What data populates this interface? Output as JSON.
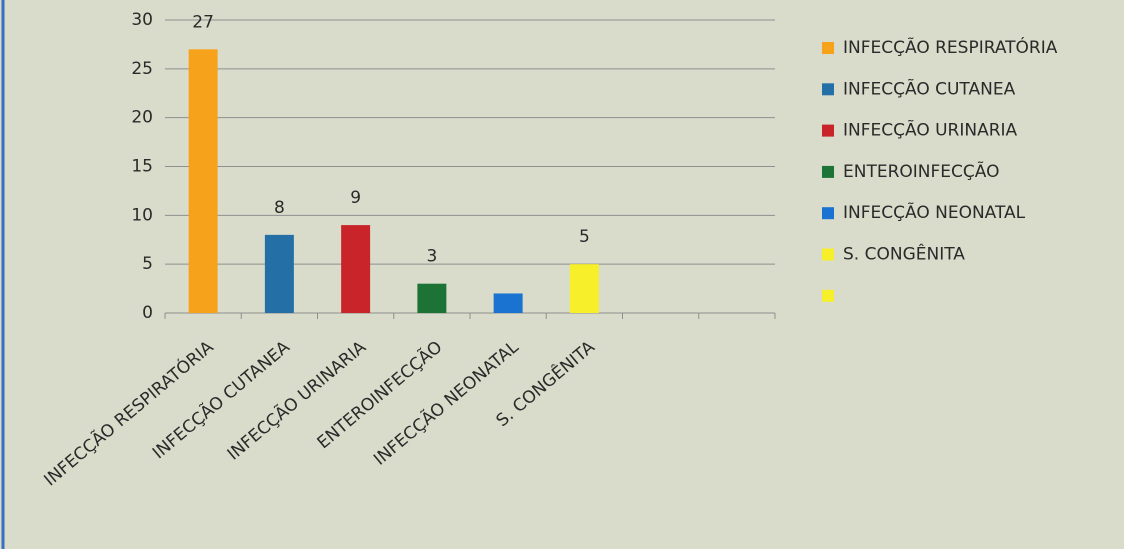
{
  "chart_data": {
    "type": "bar",
    "categories": [
      "INFECÇÃO RESPIRATÓRIA",
      "INFECÇÃO CUTANEA",
      "INFECÇÃO URINARIA",
      "ENTEROINFECÇÃO",
      "INFECÇÃO NEONATAL",
      "S. CONGÊNITA",
      null,
      null
    ],
    "values": [
      27,
      8,
      9,
      3,
      2,
      5,
      null,
      null
    ],
    "value_labels": [
      "27",
      "8",
      "9",
      "3",
      null,
      "5",
      null,
      null
    ],
    "colors": [
      "#f7a21b",
      "#2470a6",
      "#c8242a",
      "#1c7335",
      "#1a73d0",
      "#f7ef2a",
      null,
      null
    ],
    "legend": [
      {
        "name": "INFECÇÃO RESPIRATÓRIA",
        "color": "#f7a21b"
      },
      {
        "name": "INFECÇÃO CUTANEA",
        "color": "#2470a6"
      },
      {
        "name": "INFECÇÃO URINARIA",
        "color": "#c8242a"
      },
      {
        "name": "ENTEROINFECÇÃO",
        "color": "#1c7335"
      },
      {
        "name": "INFECÇÃO NEONATAL",
        "color": "#1a73d0"
      },
      {
        "name": "S. CONGÊNITA",
        "color": "#f7ef2a"
      },
      {
        "name": null,
        "color": "#f7ef2a"
      }
    ],
    "ylim": [
      0,
      30
    ],
    "yticks": [
      0,
      5,
      10,
      15,
      20,
      25,
      30
    ],
    "grid": true,
    "legend_position": "right"
  }
}
